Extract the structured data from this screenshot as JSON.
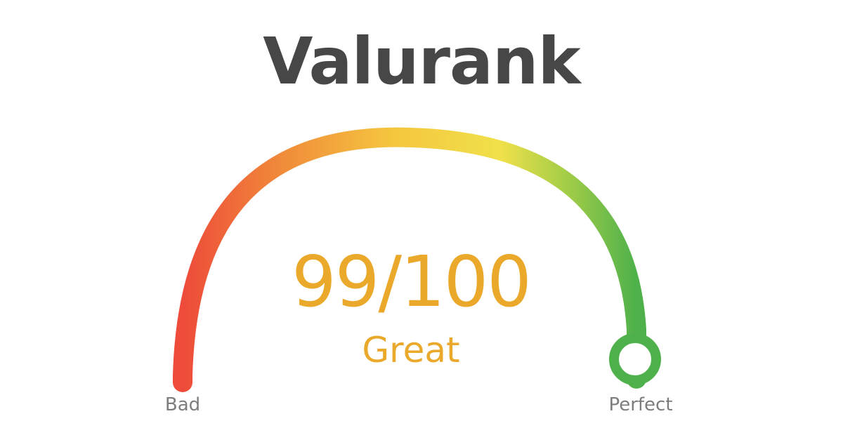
{
  "brand": {
    "name": "Valurank"
  },
  "gauge": {
    "score_text": "99/100",
    "score_value": 99,
    "score_max": 100,
    "rating_label": "Great",
    "min_label": "Bad",
    "max_label": "Perfect"
  },
  "colors": {
    "brand_text": "#474747",
    "score_text": "#eba92b",
    "end_labels": "#7d7d7d",
    "arc_stops": [
      "#ee4b3a",
      "#f08c3a",
      "#f5c43f",
      "#f0e14a",
      "#9ccb48",
      "#4fb14b"
    ],
    "knob_stroke": "#4fb14b",
    "knob_fill": "#ffffff"
  }
}
